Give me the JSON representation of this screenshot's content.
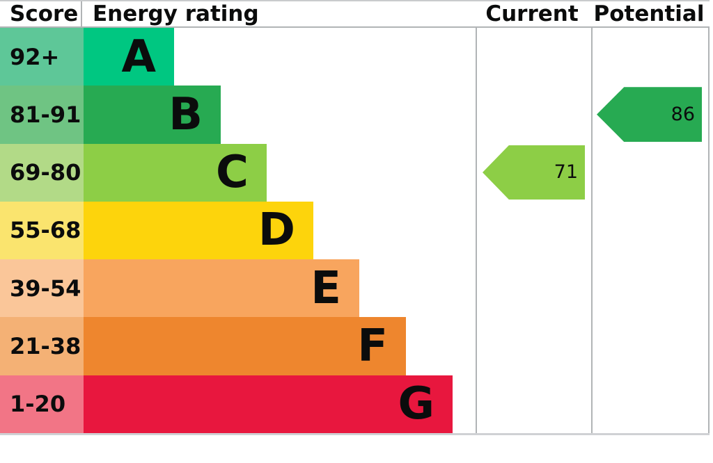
{
  "header": {
    "score": "Score",
    "rating": "Energy rating",
    "current": "Current",
    "potential": "Potential"
  },
  "bands": [
    {
      "score": "92+",
      "letter": "A",
      "bar_color": "#00c781",
      "score_color": "#5ec798"
    },
    {
      "score": "81-91",
      "letter": "B",
      "bar_color": "#27aa52",
      "score_color": "#6fc483"
    },
    {
      "score": "69-80",
      "letter": "C",
      "bar_color": "#8dce46",
      "score_color": "#b2da87"
    },
    {
      "score": "55-68",
      "letter": "D",
      "bar_color": "#fdd40c",
      "score_color": "#fae46e"
    },
    {
      "score": "39-54",
      "letter": "E",
      "bar_color": "#f8a55e",
      "score_color": "#fac699"
    },
    {
      "score": "21-38",
      "letter": "F",
      "bar_color": "#ee862e",
      "score_color": "#f4b175"
    },
    {
      "score": "1-20",
      "letter": "G",
      "bar_color": "#e8173e",
      "score_color": "#f27586"
    }
  ],
  "current": {
    "value": "71",
    "band": "C",
    "row_index": 2,
    "color": "#8dce46"
  },
  "potential": {
    "value": "86",
    "band": "B",
    "row_index": 1,
    "color": "#27aa52"
  },
  "chart_data": {
    "type": "bar",
    "title": "Energy rating",
    "categories": [
      "A",
      "B",
      "C",
      "D",
      "E",
      "F",
      "G"
    ],
    "score_ranges": [
      "92+",
      "81-91",
      "69-80",
      "55-68",
      "39-54",
      "21-38",
      "1-20"
    ],
    "band_colors": [
      "#00c781",
      "#27aa52",
      "#8dce46",
      "#fdd40c",
      "#f8a55e",
      "#ee862e",
      "#e8173e"
    ],
    "columns": [
      "Score",
      "Energy rating",
      "Current",
      "Potential"
    ],
    "current": {
      "value": 71,
      "band": "C"
    },
    "potential": {
      "value": 86,
      "band": "B"
    },
    "legend_position": "none",
    "grid": false
  }
}
